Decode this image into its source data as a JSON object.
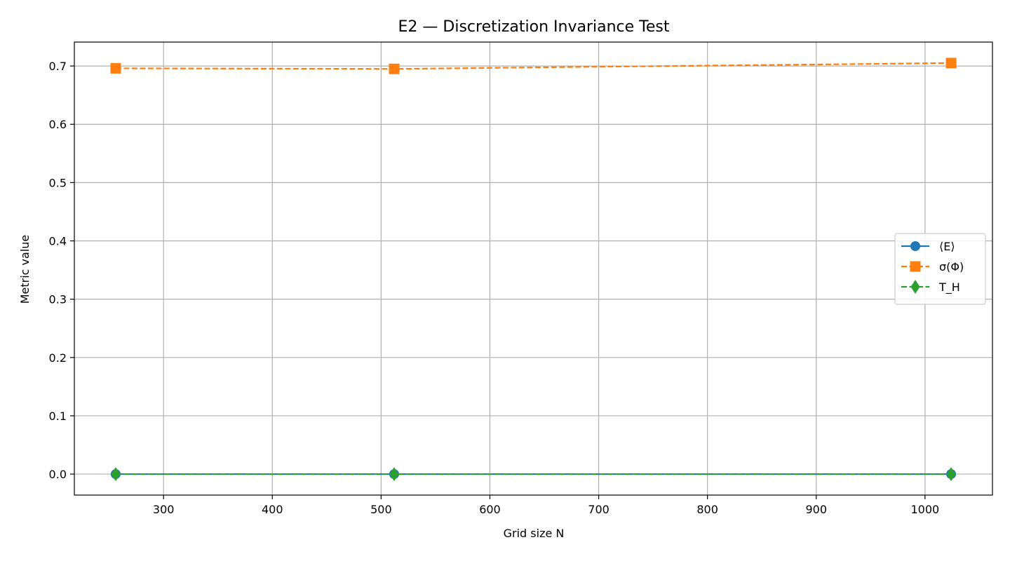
{
  "chart_data": {
    "type": "line",
    "title": "E2 — Discretization Invariance Test",
    "xlabel": "Grid size N",
    "ylabel": "Metric value",
    "xlim": [
      218,
      1062
    ],
    "ylim": [
      -0.036,
      0.741
    ],
    "xticks": [
      300,
      400,
      500,
      600,
      700,
      800,
      900,
      1000
    ],
    "yticks": [
      0.0,
      0.1,
      0.2,
      0.3,
      0.4,
      0.5,
      0.6,
      0.7
    ],
    "grid": true,
    "legend_position": "center-right",
    "series": [
      {
        "name": "⟨E⟩",
        "x": [
          256,
          512,
          1024
        ],
        "y": [
          0.0,
          0.0,
          0.0
        ],
        "color": "#1f77b4",
        "marker": "circle",
        "linestyle": "solid"
      },
      {
        "name": "σ(Φ)",
        "x": [
          256,
          512,
          1024
        ],
        "y": [
          0.696,
          0.695,
          0.705
        ],
        "color": "#ff7f0e",
        "marker": "square",
        "linestyle": "dashed"
      },
      {
        "name": "T_H",
        "x": [
          256,
          512,
          1024
        ],
        "y": [
          0.0,
          0.0,
          0.0
        ],
        "color": "#2ca02c",
        "marker": "diamond",
        "linestyle": "dashed"
      }
    ]
  }
}
